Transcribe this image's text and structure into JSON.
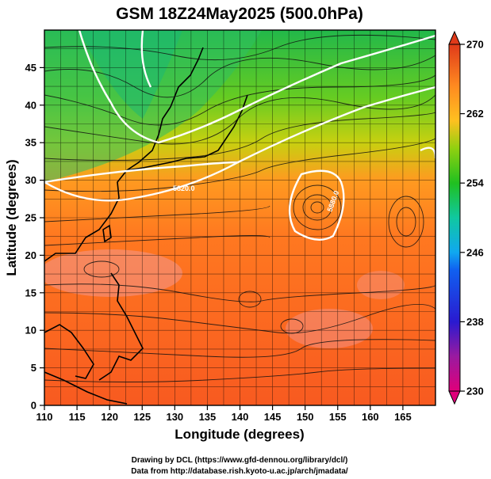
{
  "title": "GSM 18Z24May2025 (500.0hPa)",
  "x_axis": {
    "label": "Longitude (degrees)",
    "range": [
      110,
      170
    ],
    "ticks": [
      "110",
      "115",
      "120",
      "125",
      "130",
      "135",
      "140",
      "145",
      "150",
      "155",
      "160",
      "165"
    ]
  },
  "y_axis": {
    "label": "Latitude  (degrees)",
    "range": [
      0,
      50
    ],
    "ticks": [
      "0",
      "5",
      "10",
      "15",
      "20",
      "25",
      "30",
      "35",
      "40",
      "45"
    ]
  },
  "colorbar": {
    "range": [
      230,
      270
    ],
    "ticks": [
      "230",
      "238",
      "246",
      "254",
      "262",
      "270"
    ],
    "colors": {
      "c230": "#e0007a",
      "c238": "#2a1ad0",
      "c246": "#10a8f0",
      "c254": "#20c020",
      "c262": "#ffa020",
      "c270": "#e03a1a"
    }
  },
  "contours": {
    "labels": [
      "5820.0",
      "5880.0",
      "5880",
      "5760"
    ],
    "color": "#ffffff"
  },
  "credits": {
    "line1": "Drawing by DCL (https://www.gfd-dennou.org/library/dcl/)",
    "line2": "Data from http://database.rish.kyoto-u.ac.jp/arch/jmadata/"
  }
}
